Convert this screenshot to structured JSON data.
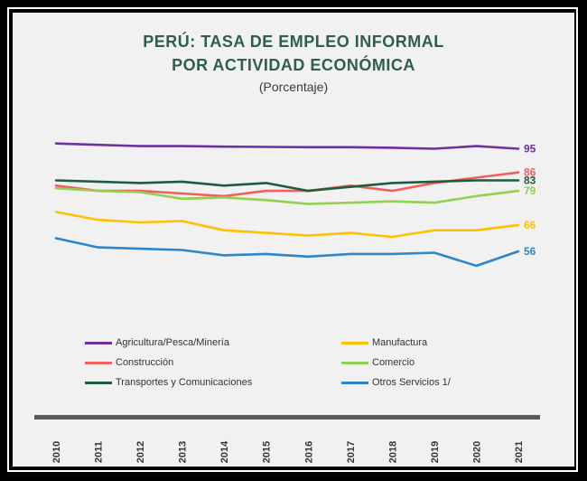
{
  "title_line1": "PERÚ: TASA DE EMPLEO INFORMAL",
  "title_line2": "POR ACTIVIDAD ECONÓMICA",
  "subtitle": "(Porcentaje)",
  "chart_data": {
    "type": "line",
    "title": "PERÚ: TASA DE EMPLEO INFORMAL POR ACTIVIDAD ECONÓMICA",
    "subtitle": "(Porcentaje)",
    "x": [
      "2010",
      "2011",
      "2012",
      "2013",
      "2014",
      "2015",
      "2016",
      "2017",
      "2018",
      "2019",
      "2020",
      "2021"
    ],
    "ylim": [
      45,
      100
    ],
    "grid": false,
    "legend_position": "bottom",
    "series": [
      {
        "name": "Agricultura/Pesca/Minería",
        "color": "#7030a0",
        "values": [
          97,
          96.5,
          96,
          96,
          95.8,
          95.7,
          95.6,
          95.6,
          95.4,
          95,
          96,
          95
        ],
        "end_label": "95"
      },
      {
        "name": "Construcción",
        "color": "#f35f5f",
        "values": [
          81,
          79,
          79,
          78,
          77,
          79,
          79,
          81,
          79,
          82,
          84,
          86
        ],
        "end_label": "86"
      },
      {
        "name": "Transportes y Comunicaciones",
        "color": "#1f5c3d",
        "values": [
          83,
          82.5,
          82,
          82.5,
          81,
          82,
          79,
          80.5,
          82,
          82.5,
          83,
          83
        ],
        "end_label": "83"
      },
      {
        "name": "Manufactura",
        "color": "#ffc000",
        "values": [
          71,
          68,
          67,
          67.5,
          64,
          63,
          62,
          63,
          61.5,
          64,
          64,
          66
        ],
        "end_label": "66"
      },
      {
        "name": "Comercio",
        "color": "#92d050",
        "values": [
          80,
          79,
          78.5,
          76,
          76.5,
          75.5,
          74,
          74.5,
          75,
          74.5,
          77,
          79
        ],
        "end_label": "79"
      },
      {
        "name": "Otros Servicios 1/",
        "color": "#2e86c8",
        "values": [
          61,
          57.5,
          57,
          56.5,
          54.5,
          55,
          54,
          55,
          55,
          55.5,
          50.5,
          56
        ],
        "end_label": "56"
      }
    ]
  },
  "legend": [
    {
      "label": "Agricultura/Pesca/Minería",
      "color": "#7030a0"
    },
    {
      "label": "Manufactura",
      "color": "#ffc000"
    },
    {
      "label": "Construcción",
      "color": "#f35f5f"
    },
    {
      "label": "Comercio",
      "color": "#92d050"
    },
    {
      "label": "Transportes y Comunicaciones",
      "color": "#1f5c3d"
    },
    {
      "label": "Otros Servicios 1/",
      "color": "#2e86c8"
    }
  ]
}
